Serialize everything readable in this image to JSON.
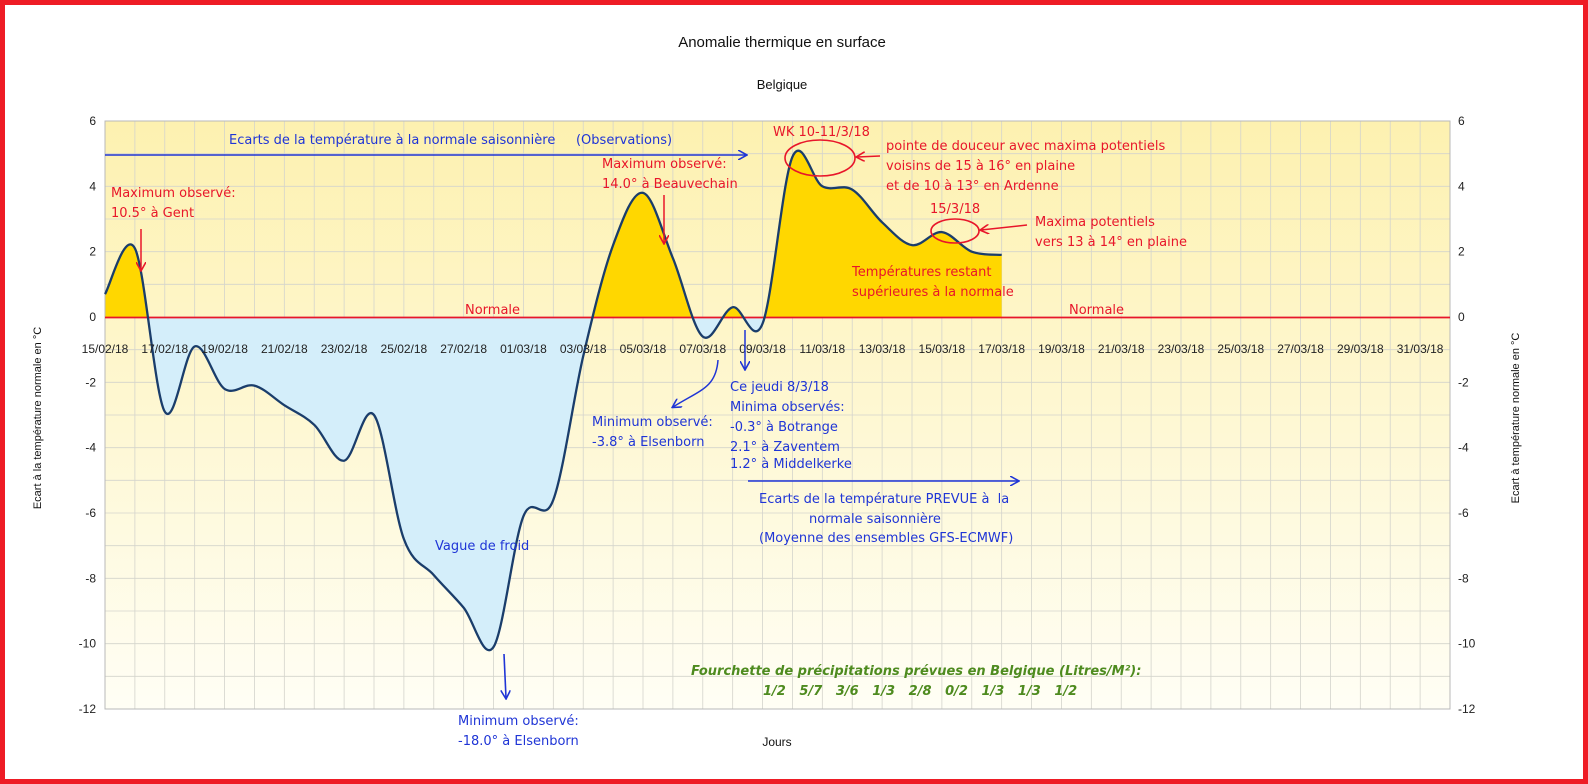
{
  "chart_data": {
    "type": "area",
    "title": "Anomalie thermique en surface",
    "subtitle": "Belgique",
    "xlabel": "Jours",
    "ylabel_left": "Ecart à la température normale en °C",
    "ylabel_right": "Ecart à température normale en °C",
    "ylim": [
      -12,
      6
    ],
    "yticks": [
      "6",
      "4",
      "2",
      "0",
      "-2",
      "-4",
      "-6",
      "-8",
      "-10",
      "-12"
    ],
    "xticks": [
      "15/02/18",
      "17/02/18",
      "19/02/18",
      "21/02/18",
      "23/02/18",
      "25/02/18",
      "27/02/18",
      "01/03/18",
      "03/03/18",
      "05/03/18",
      "07/03/18",
      "09/03/18",
      "11/03/18",
      "13/03/18",
      "15/03/18",
      "17/03/18",
      "19/03/18",
      "21/03/18",
      "23/03/18",
      "25/03/18",
      "27/03/18",
      "29/03/18",
      "31/03/18"
    ],
    "grid": true,
    "positive_fill": "#ffd700",
    "negative_fill": "#d4eefa",
    "line_color": "#1a3d6b",
    "background_top": "#fdf3b8",
    "background_bottom": "#fffef4",
    "series": [
      {
        "x": [
          "15/02",
          "16/02",
          "17/02",
          "18/02",
          "19/02",
          "20/02",
          "21/02",
          "22/02",
          "23/02",
          "24/02",
          "25/02",
          "26/02",
          "27/02",
          "28/02",
          "01/03",
          "02/03",
          "03/03",
          "04/03",
          "05/03",
          "06/03",
          "07/03",
          "08/03",
          "09/03",
          "10/03",
          "11/03",
          "12/03",
          "13/03",
          "14/03",
          "15/03",
          "16/03",
          "17/03"
        ],
        "values": [
          0.7,
          2.1,
          -2.9,
          -0.9,
          -2.2,
          -2.1,
          -2.7,
          -3.3,
          -4.4,
          -3.0,
          -6.8,
          -7.9,
          -8.9,
          -10.1,
          -6.1,
          -5.6,
          -1.2,
          2.2,
          3.8,
          1.8,
          -0.6,
          0.3,
          -0.2,
          4.9,
          4.0,
          3.9,
          2.9,
          2.2,
          2.6,
          2.0,
          1.9
        ]
      }
    ],
    "normale_label": "Normale",
    "annotations": {
      "obs_arrow": "Ecarts de la température à la normale saisonnière     (Observations)",
      "max_gent": [
        "Maximum observé:",
        "10.5° à Gent"
      ],
      "max_beauv": [
        "Maximum observé:",
        "14.0° à Beauvechain"
      ],
      "wk": "WK 10-11/3/18",
      "douceur": [
        "pointe de douceur avec maxima potentiels",
        "voisins de 15 à 16° en plaine",
        "et de 10 à 13° en Ardenne"
      ],
      "date_15": "15/3/18",
      "maxima_pot": [
        "Maxima potentiels",
        "vers 13 à 14° en plaine"
      ],
      "temp_restant": [
        "Températures restant",
        "supérieures à la normale"
      ],
      "min_els1": [
        "Minimum observé:",
        "-3.8° à Elsenborn"
      ],
      "jeudi": [
        "Ce jeudi 8/3/18",
        "Minima observés:",
        "-0.3° à Botrange",
        "2.1° à Zaventem",
        "1.2° à Middelkerke"
      ],
      "prevue": [
        "Ecarts de la température PREVUE à  la",
        "normale saisonnière",
        "(Moyenne des ensembles GFS-ECMWF)"
      ],
      "vague": "Vague de froid",
      "min_els2": [
        "Minimum observé:",
        "-18.0° à Elsenborn"
      ],
      "precip_title": "Fourchette de précipitations prévues en Belgique (Litres/M²):",
      "precip_values": "1/2   5/7   3/6   1/3   2/8   0/2   1/3   1/3   1/2"
    }
  }
}
